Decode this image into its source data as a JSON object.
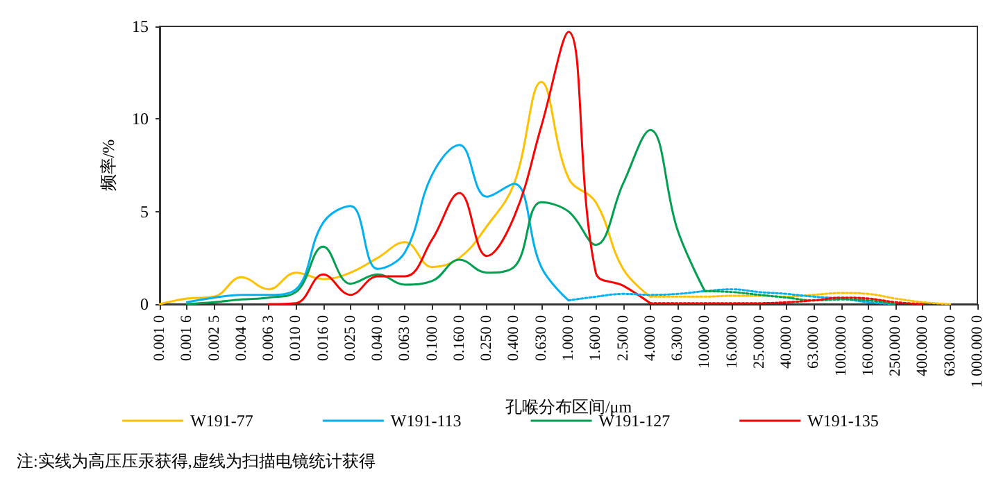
{
  "chart_data": {
    "type": "line",
    "xlabel": "孔喉分布区间/μm",
    "ylabel": "频率/%",
    "categories": [
      "0.001 0",
      "0.001 6",
      "0.002 5",
      "0.004 0",
      "0.006 3",
      "0.010 0",
      "0.016 0",
      "0.025 0",
      "0.040 0",
      "0.063 0",
      "0.100 0",
      "0.160 0",
      "0.250 0",
      "0.400 0",
      "0.630 0",
      "1.000 0",
      "1.600 0",
      "2.500 0",
      "4.000 0",
      "6.300 0",
      "10.000 0",
      "16.000 0",
      "25.000 0",
      "40.000 0",
      "63.000 0",
      "100.000 0",
      "160.000 0",
      "250.000 0",
      "400.000 0",
      "630.000 0",
      "1 000.000 0"
    ],
    "series": [
      {
        "name": "W191-77",
        "color": "#ffc000",
        "line_style": "solid",
        "values": [
          0,
          0.3,
          0.4,
          1.45,
          0.8,
          1.7,
          1.35,
          1.7,
          2.5,
          3.35,
          2.0,
          2.5,
          4.2,
          6.5,
          12.0,
          6.8,
          5.5,
          1.9,
          0.4,
          null,
          null,
          null,
          null,
          null,
          null,
          null,
          null,
          null,
          null,
          null,
          null
        ]
      },
      {
        "name": "W191-113",
        "color": "#00b0f0",
        "line_style": "solid",
        "values": [
          null,
          0.1,
          0.35,
          0.5,
          0.5,
          0.8,
          4.4,
          5.3,
          1.9,
          2.8,
          7.0,
          8.6,
          5.8,
          6.5,
          2.0,
          0.2,
          null,
          null,
          null,
          null,
          null,
          null,
          null,
          null,
          null,
          null,
          null,
          null,
          null,
          null,
          null
        ]
      },
      {
        "name": "W191-127",
        "color": "#00a050",
        "line_style": "solid",
        "values": [
          null,
          0,
          0.1,
          0.25,
          0.35,
          0.65,
          3.1,
          1.1,
          1.6,
          1.05,
          1.25,
          2.4,
          1.7,
          2.0,
          5.5,
          5.0,
          3.2,
          6.5,
          9.4,
          4.0,
          0.7,
          null,
          null,
          null,
          null,
          null,
          null,
          null,
          null,
          null,
          null
        ]
      },
      {
        "name": "W191-135",
        "color": "#ff0000",
        "line_style": "solid",
        "values": [
          null,
          null,
          null,
          null,
          0,
          0.05,
          1.6,
          0.5,
          1.5,
          1.5,
          3.5,
          6.0,
          2.6,
          4.7,
          9.6,
          14.7,
          1.7,
          1.0,
          0.05,
          null,
          null,
          null,
          null,
          null,
          null,
          null,
          null,
          null,
          null,
          null,
          null
        ]
      },
      {
        "color": "#ffc000",
        "line_style": "dotted",
        "values": [
          null,
          null,
          null,
          null,
          null,
          null,
          null,
          null,
          null,
          null,
          null,
          null,
          null,
          null,
          null,
          null,
          null,
          null,
          0.4,
          0.4,
          0.4,
          0.45,
          0.45,
          0.4,
          0.5,
          0.6,
          0.55,
          0.3,
          0.1,
          0,
          null
        ]
      },
      {
        "color": "#00b0f0",
        "line_style": "dotted",
        "values": [
          null,
          null,
          null,
          null,
          null,
          null,
          null,
          null,
          null,
          null,
          null,
          null,
          null,
          null,
          null,
          0.2,
          0.4,
          0.55,
          0.5,
          0.55,
          0.7,
          0.8,
          0.65,
          0.55,
          0.4,
          0.3,
          0.1,
          0,
          null,
          null,
          null
        ]
      },
      {
        "color": "#00a050",
        "line_style": "dotted",
        "values": [
          null,
          null,
          null,
          null,
          null,
          null,
          null,
          null,
          null,
          null,
          null,
          null,
          null,
          null,
          null,
          null,
          null,
          null,
          null,
          null,
          0.7,
          0.65,
          0.5,
          0.35,
          0.2,
          0.25,
          0.2,
          0,
          null,
          null,
          null
        ]
      },
      {
        "color": "#ff0000",
        "line_style": "dotted",
        "values": [
          null,
          null,
          null,
          null,
          null,
          null,
          null,
          null,
          null,
          null,
          null,
          null,
          null,
          null,
          null,
          null,
          null,
          null,
          0.05,
          0.05,
          0.05,
          0.05,
          0.05,
          0.1,
          0.2,
          0.35,
          0.3,
          0.1,
          0,
          null,
          null
        ]
      }
    ],
    "ylim": [
      0,
      15
    ],
    "yticks": [
      0,
      5,
      10,
      15
    ],
    "grid": false,
    "legend": "bottom",
    "marker": "none",
    "annotations": [
      "注:实线为高压压汞获得,虚线为扫描电镜统计获得"
    ]
  }
}
